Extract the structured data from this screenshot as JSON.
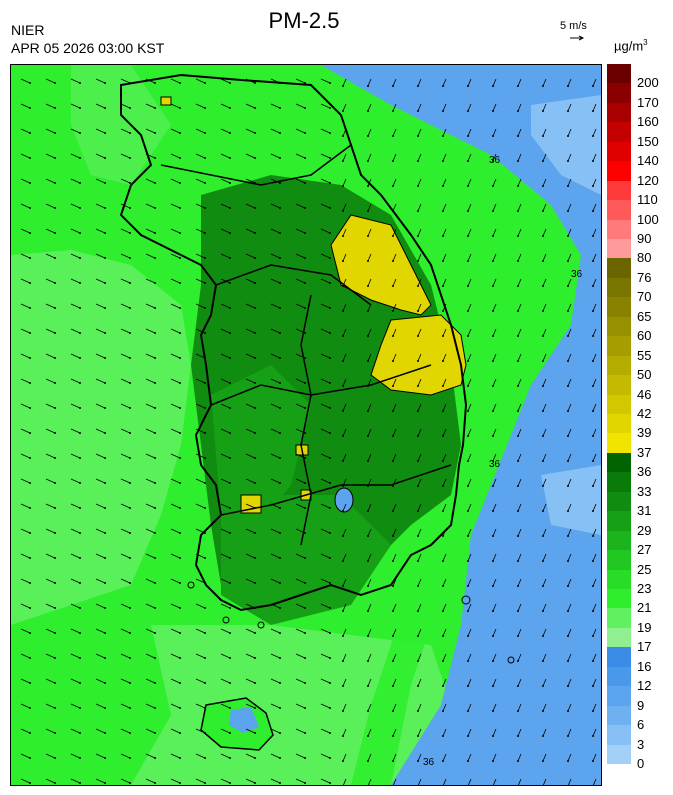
{
  "header": {
    "agency": "NIER",
    "timestamp": "APR 05 2026 03:00 KST",
    "title": "PM-2.5",
    "wind_reference": "5 m/s"
  },
  "legend": {
    "unit": "µg/m",
    "unit_exponent": "3",
    "bins": [
      {
        "label": "200",
        "color": "#6b0000"
      },
      {
        "label": "170",
        "color": "#8a0000"
      },
      {
        "label": "160",
        "color": "#a80000"
      },
      {
        "label": "150",
        "color": "#c40000"
      },
      {
        "label": "140",
        "color": "#e00000"
      },
      {
        "label": "120",
        "color": "#ff0000"
      },
      {
        "label": "110",
        "color": "#ff3a3a"
      },
      {
        "label": "100",
        "color": "#ff5a5a"
      },
      {
        "label": "90",
        "color": "#ff7a7a"
      },
      {
        "label": "80",
        "color": "#ff9a9a"
      },
      {
        "label": "76",
        "color": "#6b6500"
      },
      {
        "label": "70",
        "color": "#7a7400"
      },
      {
        "label": "65",
        "color": "#888200"
      },
      {
        "label": "60",
        "color": "#979000"
      },
      {
        "label": "55",
        "color": "#a69e00"
      },
      {
        "label": "50",
        "color": "#b5ac00"
      },
      {
        "label": "46",
        "color": "#c4ba00"
      },
      {
        "label": "42",
        "color": "#d3c800"
      },
      {
        "label": "39",
        "color": "#e2d600"
      },
      {
        "label": "37",
        "color": "#f0e400"
      },
      {
        "label": "36",
        "color": "#006400"
      },
      {
        "label": "33",
        "color": "#0a7a0a"
      },
      {
        "label": "31",
        "color": "#108c10"
      },
      {
        "label": "29",
        "color": "#16a016"
      },
      {
        "label": "27",
        "color": "#1cb41c"
      },
      {
        "label": "25",
        "color": "#22c822"
      },
      {
        "label": "23",
        "color": "#28dc28"
      },
      {
        "label": "21",
        "color": "#2eee2e"
      },
      {
        "label": "19",
        "color": "#60f060"
      },
      {
        "label": "17",
        "color": "#90f090"
      },
      {
        "label": "16",
        "color": "#3a8ce6"
      },
      {
        "label": "12",
        "color": "#4a98ea"
      },
      {
        "label": "9",
        "color": "#5ca4ee"
      },
      {
        "label": "6",
        "color": "#6eb0f0"
      },
      {
        "label": "3",
        "color": "#86c0f4"
      },
      {
        "label": "0",
        "color": "#a2d0f6"
      }
    ]
  },
  "map": {
    "contour_label": "36",
    "fill_colors": {
      "background": "#2eee2e",
      "dark_green": "#108c10",
      "mid_green": "#22c822",
      "light_green": "#60f060",
      "blue": "#5ca4ee",
      "light_blue": "#86c0f4",
      "yellow": "#e2d600"
    }
  }
}
